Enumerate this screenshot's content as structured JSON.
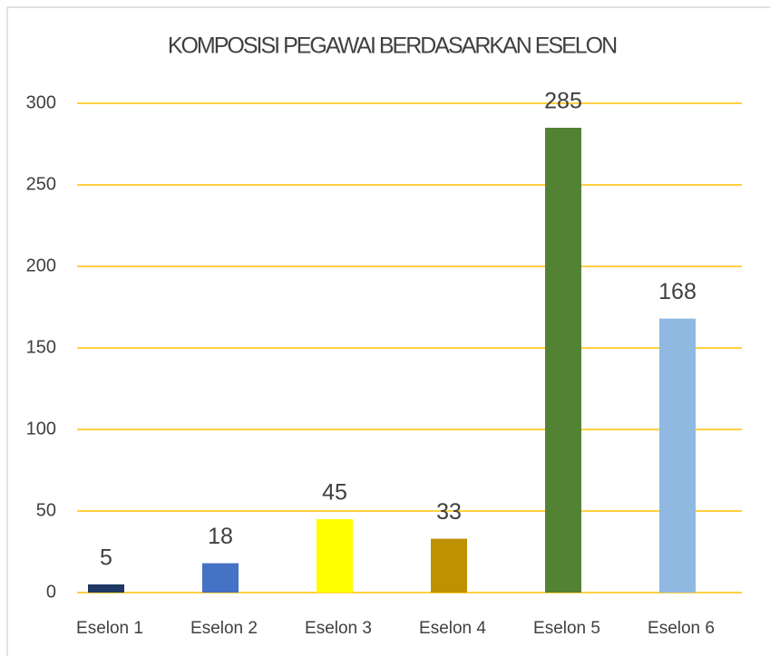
{
  "chart_data": {
    "type": "bar",
    "title": "KOMPOSISI PEGAWAI BERDASARKAN ESELON",
    "categories": [
      "Eselon 1",
      "Eselon 2",
      "Eselon 3",
      "Eselon 4",
      "Eselon 5",
      "Eselon 6"
    ],
    "values": [
      5,
      18,
      45,
      33,
      285,
      168
    ],
    "colors": [
      "#203864",
      "#4472c4",
      "#ffff00",
      "#bf9000",
      "#548235",
      "#8fb9e1"
    ],
    "ylim": [
      0,
      300
    ],
    "yticks": [
      0,
      50,
      100,
      150,
      200,
      250,
      300
    ],
    "grid": true,
    "grid_color": "#ffc000"
  }
}
